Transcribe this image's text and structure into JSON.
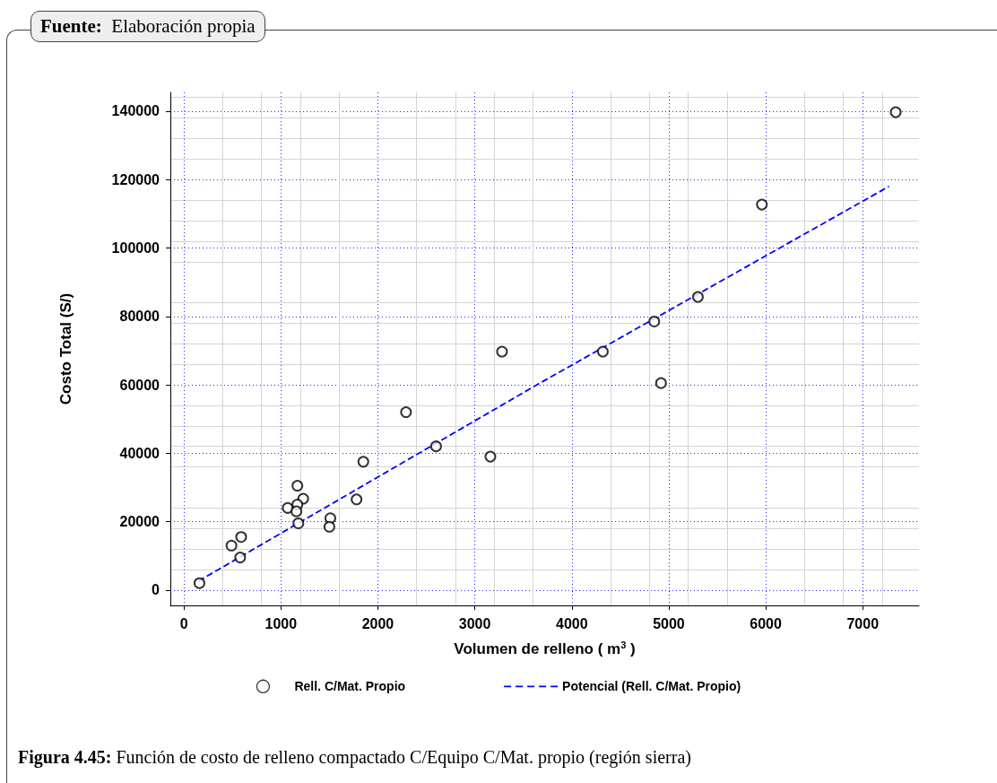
{
  "chart_data": {
    "type": "scatter",
    "xlabel": "Volumen de relleno ( m$^{3}$ )",
    "ylabel": "Costo Total (S/)",
    "annotations": [
      "Fuente: Elaboración propia",
      "Figura 4.45: Función de costo de relleno compactado C/Equipo C/Mat. propio (región sierra)"
    ],
    "xlim": [
      -140,
      7580
    ],
    "ylim": [
      -4500,
      145500
    ],
    "xticks": [
      0,
      1000,
      2000,
      3000,
      4000,
      5000,
      6000,
      7000
    ],
    "yticks": [
      0,
      20000,
      40000,
      60000,
      80000,
      100000,
      120000,
      140000
    ],
    "grid": true,
    "legend": "bottom",
    "marker": "circle",
    "series": [
      {
        "name": "Rell. C/Mat. Propio",
        "color": "#000000",
        "x": [
          160,
          490,
          590,
          580,
          1070,
          1170,
          1230,
          1170,
          1160,
          1180,
          1510,
          1500,
          1780,
          1850,
          2290,
          2600,
          3160,
          3280,
          4320,
          4850,
          4920,
          5300,
          5960,
          7340
        ],
        "values": [
          2000,
          13000,
          15500,
          9500,
          24000,
          30500,
          26700,
          25000,
          23000,
          19500,
          21000,
          18500,
          26500,
          37500,
          52000,
          42000,
          39000,
          69700,
          69700,
          78500,
          60500,
          85700,
          112700,
          139700
        ]
      },
      {
        "name": "Potencial (Rell. C/Mat. Propio)",
        "type": "line",
        "line_style": "dashed",
        "marker": "none",
        "color": "#0000ff",
        "x": [
          150,
          3640,
          7270
        ],
        "values": [
          2600,
          60000,
          118000
        ]
      }
    ]
  }
}
